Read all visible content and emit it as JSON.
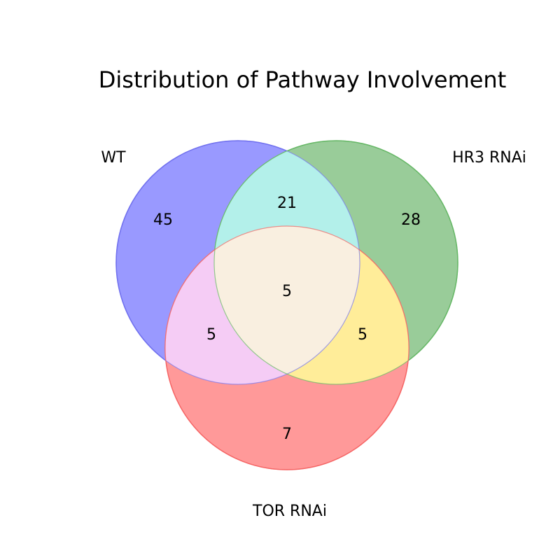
{
  "title": "Distribution of Pathway Involvement",
  "sets": [
    {
      "name": "WT",
      "color": "#0000ff"
    },
    {
      "name": "HR3 RNAi",
      "color": "#008000"
    },
    {
      "name": "TOR RNAi",
      "color": "#ff0000"
    }
  ],
  "regions": {
    "wt_only": "45",
    "hr3_only": "28",
    "tor_only": "7",
    "wt_hr3": "21",
    "wt_tor": "5",
    "hr3_tor": "5",
    "all_three": "5"
  },
  "chart_data": {
    "type": "venn",
    "title": "Distribution of Pathway Involvement",
    "sets": [
      "WT",
      "HR3 RNAi",
      "TOR RNAi"
    ],
    "subsets": {
      "WT": 45,
      "HR3 RNAi": 28,
      "TOR RNAi": 7,
      "WT&HR3 RNAi": 21,
      "WT&TOR RNAi": 5,
      "HR3 RNAi&TOR RNAi": 5,
      "WT&HR3 RNAi&TOR RNAi": 5
    }
  }
}
